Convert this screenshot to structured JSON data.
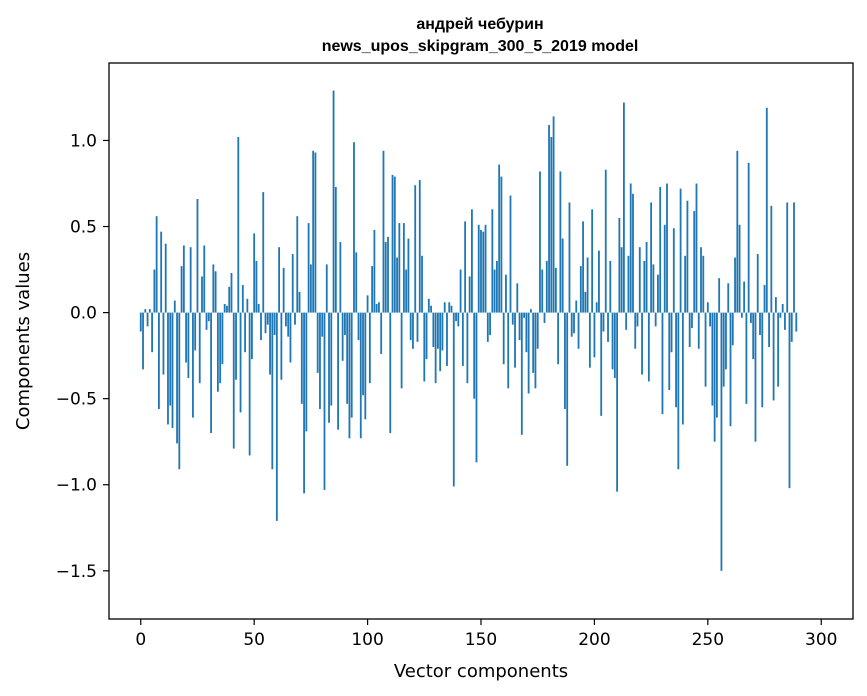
{
  "chart_data": {
    "type": "bar",
    "title": "андрей чебурин",
    "subtitle": "news_upos_skipgram_300_5_2019 model",
    "xlabel": "Vector components",
    "ylabel": "Components values",
    "xlim": [
      -14,
      314
    ],
    "ylim": [
      -1.78,
      1.45
    ],
    "xticks": [
      0,
      50,
      100,
      150,
      200,
      250,
      300
    ],
    "xtick_labels": [
      "0",
      "50",
      "100",
      "150",
      "200",
      "250",
      "300"
    ],
    "yticks": [
      1.0,
      0.5,
      0.0,
      -0.5,
      -1.0,
      -1.5
    ],
    "ytick_labels": [
      "1.0",
      "0.5",
      "0.0",
      "−0.5",
      "−1.0",
      "−1.5"
    ],
    "bar_color": "#1f77b4",
    "grid": false,
    "values": [
      -0.11,
      -0.33,
      0.02,
      -0.08,
      0.02,
      -0.23,
      0.25,
      0.56,
      -0.56,
      0.47,
      -0.36,
      0.4,
      -0.65,
      -0.54,
      -0.67,
      0.07,
      -0.76,
      -0.91,
      0.27,
      0.39,
      -0.29,
      -0.38,
      0.38,
      -0.61,
      -0.22,
      0.66,
      -0.41,
      0.21,
      0.39,
      -0.1,
      -0.05,
      -0.7,
      0.28,
      0.24,
      -0.46,
      -0.41,
      -0.3,
      0.05,
      0.04,
      0.15,
      0.23,
      -0.79,
      -0.39,
      1.02,
      -0.58,
      0.16,
      -0.23,
      0.08,
      -0.83,
      -0.27,
      0.46,
      0.3,
      0.05,
      -0.16,
      0.7,
      -0.12,
      -0.07,
      -0.36,
      -0.91,
      -0.13,
      -1.21,
      0.38,
      -0.39,
      0.26,
      -0.08,
      -0.14,
      -0.29,
      0.34,
      -0.07,
      0.56,
      0.12,
      -0.53,
      -1.05,
      -0.69,
      0.52,
      0.28,
      0.94,
      0.93,
      -0.35,
      -0.56,
      -0.14,
      -1.03,
      0.28,
      -0.64,
      -0.54,
      1.29,
      0.73,
      -0.68,
      0.41,
      -0.28,
      -0.13,
      -0.53,
      -0.73,
      -0.61,
      0.99,
      0.35,
      -0.16,
      -0.73,
      -0.48,
      -0.62,
      0.1,
      -0.41,
      0.27,
      0.48,
      0.05,
      0.06,
      -0.24,
      0.94,
      0.41,
      0.44,
      -0.7,
      0.8,
      0.79,
      0.32,
      0.52,
      -0.44,
      0.52,
      0.25,
      0.43,
      -0.16,
      -0.21,
      0.74,
      -0.17,
      0.77,
      0.33,
      -0.4,
      -0.27,
      0.08,
      0.04,
      -0.2,
      -0.41,
      -0.21,
      -0.34,
      -0.22,
      0.06,
      -0.31,
      0.06,
      0.04,
      -1.01,
      -0.05,
      -0.08,
      0.25,
      -0.31,
      0.53,
      -0.41,
      0.21,
      0.6,
      -0.5,
      -0.87,
      0.51,
      0.48,
      0.47,
      0.51,
      -0.17,
      -0.13,
      0.6,
      0.25,
      0.3,
      0.86,
      0.79,
      -0.3,
      0.22,
      -0.44,
      0.68,
      -0.07,
      -0.32,
      0.17,
      -0.16,
      -0.71,
      -0.03,
      -0.23,
      -0.47,
      0.02,
      -0.35,
      -0.44,
      -0.21,
      0.82,
      0.25,
      -0.06,
      0.3,
      1.09,
      1.02,
      1.14,
      0.26,
      -0.3,
      0.82,
      0.43,
      -0.56,
      -0.89,
      0.64,
      -0.14,
      -0.12,
      0.07,
      -0.21,
      0.27,
      0.53,
      0.12,
      0.32,
      -0.32,
      0.6,
      -0.26,
      0.06,
      0.36,
      -0.6,
      -0.11,
      0.83,
      -0.17,
      0.3,
      -0.33,
      -0.38,
      -1.04,
      0.55,
      0.38,
      1.22,
      -0.1,
      0.33,
      0.75,
      0.69,
      -0.21,
      -0.08,
      0.38,
      -0.36,
      0.3,
      0.41,
      -0.4,
      0.64,
      0.28,
      -0.08,
      0.22,
      0.73,
      -0.59,
      0.51,
      0.75,
      -0.45,
      -0.23,
      0.49,
      -0.55,
      -0.91,
      0.72,
      -0.65,
      0.33,
      0.65,
      -0.2,
      -0.09,
      0.59,
      0.75,
      -0.21,
      0.38,
      0.33,
      -0.43,
      0.06,
      -0.08,
      -0.54,
      -0.75,
      -0.61,
      0.2,
      -1.5,
      -0.43,
      -0.33,
      0.17,
      -0.66,
      -0.19,
      0.32,
      0.94,
      0.51,
      -0.03,
      0.18,
      -0.53,
      0.87,
      -0.06,
      -0.27,
      -0.75,
      0.34,
      -0.13,
      -0.55,
      0.16,
      1.19,
      -0.2,
      0.62,
      -0.51,
      0.09,
      -0.43,
      -0.03,
      0.05,
      -0.1,
      0.64,
      -1.02,
      -0.17,
      0.64,
      -0.11
    ]
  }
}
